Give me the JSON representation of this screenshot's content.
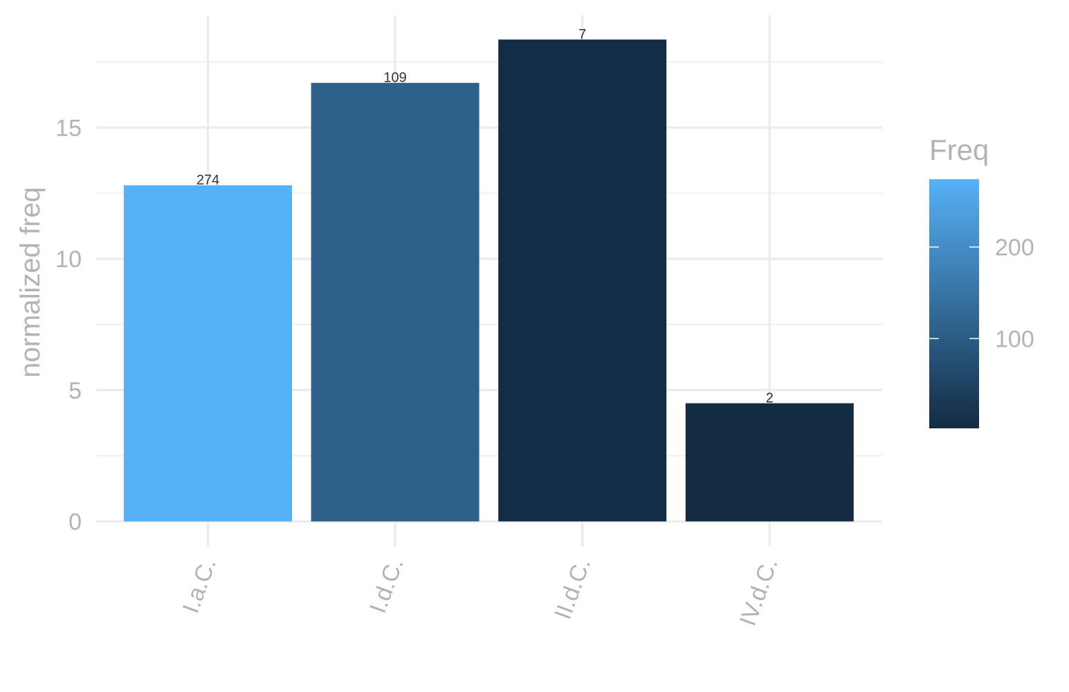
{
  "chart_data": {
    "type": "bar",
    "categories": [
      "I.a.C.",
      "I.d.C.",
      "II.d.C.",
      "IV.d.C."
    ],
    "values": [
      12.8,
      16.7,
      18.35,
      4.5
    ],
    "freq": [
      274,
      109,
      7,
      2
    ],
    "data_labels": [
      "274",
      "109",
      "7",
      "2"
    ],
    "ylabel": "normalized freq",
    "xlabel": "",
    "ylim": [
      0,
      19.7
    ],
    "yticks": [
      0,
      5,
      10,
      15
    ],
    "ytick_labels": [
      "0",
      "5",
      "10",
      "15"
    ],
    "grid": true,
    "legend": {
      "title": "Freq",
      "placement": "right",
      "range": [
        2,
        274
      ],
      "ticks": [
        100,
        200
      ],
      "tick_labels": [
        "100",
        "200"
      ],
      "color_low": "#132b43",
      "color_high": "#56b1f7"
    }
  }
}
